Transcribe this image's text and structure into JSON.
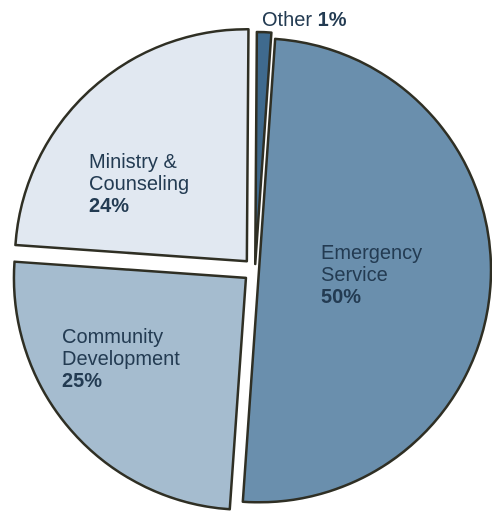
{
  "chart_data": {
    "type": "pie",
    "title": "",
    "categories": [
      "Emergency Service",
      "Community Development",
      "Ministry & Counseling",
      "Other"
    ],
    "values": [
      50,
      25,
      24,
      1
    ],
    "colors": [
      "#6a8fad",
      "#a5bccf",
      "#e1e8f1",
      "#3f6a8e"
    ],
    "border_color": "#2f2f24",
    "exploded": true,
    "labels": [
      {
        "lines": [
          "Emergency",
          "Service"
        ],
        "percent": "50%"
      },
      {
        "lines": [
          "Community",
          "Development"
        ],
        "percent": "25%"
      },
      {
        "lines": [
          "Ministry &",
          "Counseling"
        ],
        "percent": "24%"
      },
      {
        "lines": [
          "Other"
        ],
        "percent": "1%"
      }
    ]
  }
}
